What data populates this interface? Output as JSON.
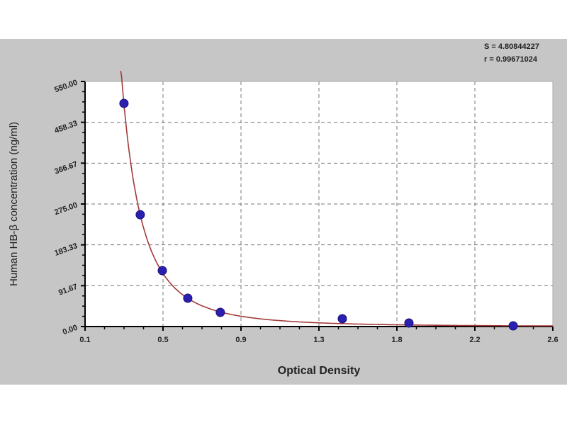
{
  "chart_data": {
    "type": "scatter",
    "xlabel": "Optical Density",
    "ylabel": "Human HB-β concentration (ng/ml)",
    "xlim": [
      0.1,
      2.6
    ],
    "ylim": [
      0,
      550
    ],
    "x_ticks": [
      "0.1",
      "0.5",
      "0.9",
      "1.3",
      "1.8",
      "2.2",
      "2.6"
    ],
    "y_ticks": [
      "0.00",
      "91.67",
      "183.33",
      "275.00",
      "366.67",
      "458.33",
      "550.00"
    ],
    "grid": true,
    "points": {
      "x": [
        0.308,
        0.395,
        0.513,
        0.649,
        0.823,
        1.475,
        1.831,
        2.388
      ],
      "y": [
        500.8,
        251.0,
        125.6,
        63.6,
        31.8,
        17.5,
        8.0,
        1.6
      ]
    },
    "fit_curve": {
      "type": "power",
      "a": 19.1,
      "b": -2.77
    },
    "annotations": [
      "S = 4.80844227",
      "r = 0.99671024"
    ],
    "colors": {
      "points": "#2b1fb0",
      "curve": "#a33a3a",
      "background": "#c6c6c6",
      "plot": "#ffffff"
    }
  }
}
